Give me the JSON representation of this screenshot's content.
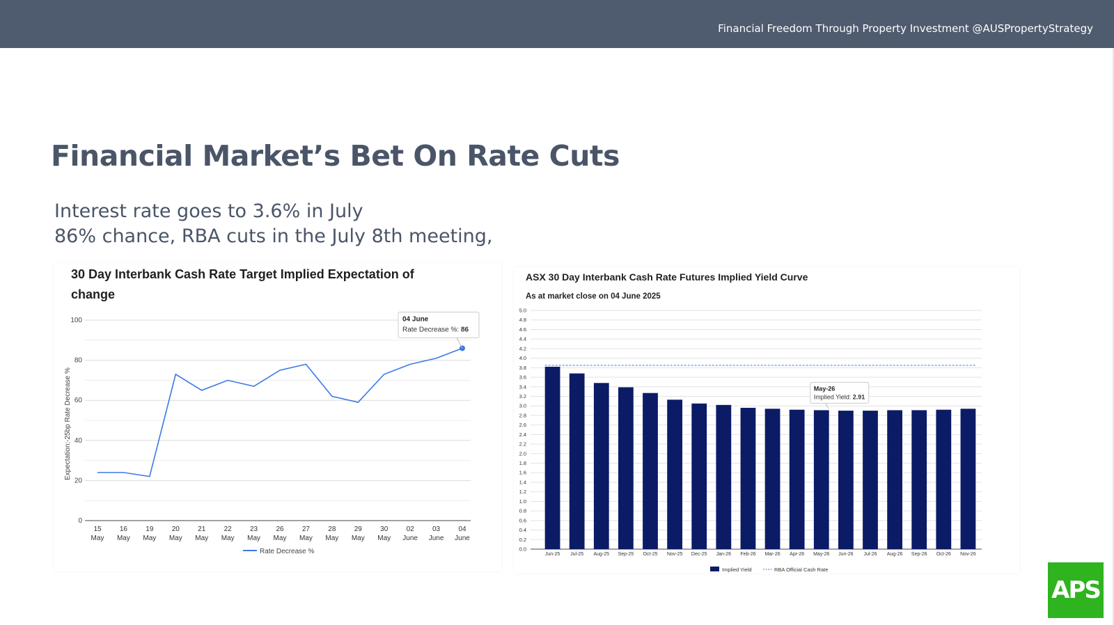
{
  "header": {
    "text": "Financial Freedom Through Property Investment @AUSPropertyStrategy"
  },
  "page": {
    "title": "Financial Market’s Bet On Rate Cuts",
    "subtitle_lines": [
      "Interest rate goes to 3.6% in July",
      "86% chance, RBA cuts in the July 8th meeting,"
    ]
  },
  "logo": {
    "text": "APS"
  },
  "colors": {
    "header_bg": "#4f5b6e",
    "line": "#3b78e7",
    "bar": "#0c1b66",
    "rba_line": "#6b8cff",
    "logo_bg": "#2fb41f"
  },
  "chart_data": [
    {
      "type": "line",
      "title": "30 Day Interbank Cash Rate Target Implied Expectation of change",
      "title_lines": [
        "30 Day Interbank Cash Rate Target Implied Expectation of",
        "change"
      ],
      "ylabel": "Expectation:-25bp Rate Decrease %",
      "xlabel": "",
      "ylim": [
        0,
        100
      ],
      "yticks": [
        0,
        20,
        40,
        60,
        80,
        100
      ],
      "categories": [
        [
          "15",
          "May"
        ],
        [
          "16",
          "May"
        ],
        [
          "19",
          "May"
        ],
        [
          "20",
          "May"
        ],
        [
          "21",
          "May"
        ],
        [
          "22",
          "May"
        ],
        [
          "23",
          "May"
        ],
        [
          "26",
          "May"
        ],
        [
          "27",
          "May"
        ],
        [
          "28",
          "May"
        ],
        [
          "29",
          "May"
        ],
        [
          "30",
          "May"
        ],
        [
          "02",
          "June"
        ],
        [
          "03",
          "June"
        ],
        [
          "04",
          "June"
        ]
      ],
      "series": [
        {
          "name": "Rate Decrease %",
          "values": [
            24,
            24,
            22,
            73,
            65,
            70,
            67,
            75,
            78,
            62,
            59,
            73,
            78,
            81,
            86
          ]
        }
      ],
      "legend": "bottom",
      "grid": true,
      "tooltip": {
        "title": "04 June",
        "label": "Rate Decrease %: ",
        "value": "86",
        "index": 14
      }
    },
    {
      "type": "bar",
      "title": "ASX 30 Day Interbank Cash Rate Futures Implied Yield Curve",
      "subtitle": "As at market close on 04 June 2025",
      "ylim": [
        0,
        5.0
      ],
      "ytick_step": 0.2,
      "categories": [
        "Jun-25",
        "Jul-25",
        "Aug-25",
        "Sep-25",
        "Oct-25",
        "Nov-25",
        "Dec-25",
        "Jan-26",
        "Feb-26",
        "Mar-26",
        "Apr-26",
        "May-26",
        "Jun-26",
        "Jul-26",
        "Aug-26",
        "Sep-26",
        "Oct-26",
        "Nov-26"
      ],
      "series": [
        {
          "name": "Implied Yield",
          "values": [
            3.82,
            3.68,
            3.48,
            3.39,
            3.27,
            3.13,
            3.05,
            3.02,
            2.96,
            2.94,
            2.92,
            2.91,
            2.9,
            2.9,
            2.91,
            2.91,
            2.92,
            2.94
          ]
        },
        {
          "name": "RBA Official Cash Rate",
          "type": "line",
          "value": 3.85
        }
      ],
      "legend": "bottom",
      "grid": true,
      "tooltip": {
        "title": "May-26",
        "label": "Implied Yield: ",
        "value": "2.91",
        "index": 11
      }
    }
  ]
}
